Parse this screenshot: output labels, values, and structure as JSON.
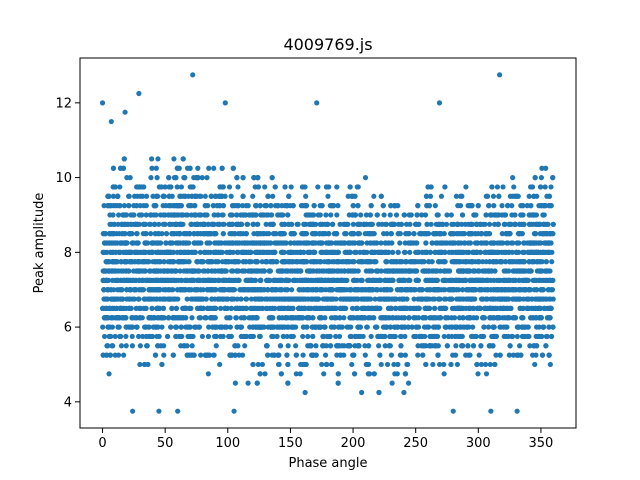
{
  "chart_data": {
    "type": "scatter",
    "title": "4009769.js",
    "xlabel": "Phase angle",
    "ylabel": "Peak amplitude",
    "xlim": [
      -18,
      378
    ],
    "ylim": [
      3.3,
      13.2
    ],
    "xticks": [
      0,
      50,
      100,
      150,
      200,
      250,
      300,
      350
    ],
    "yticks": [
      4,
      6,
      8,
      10,
      12
    ],
    "grid": false,
    "marker_color": "#1f77b4",
    "x_range": [
      0,
      360
    ],
    "y_step": 0.25,
    "approx_point_count": 6000,
    "density_note_free": true,
    "outliers": [
      {
        "x": 0,
        "y": 12.0
      },
      {
        "x": 7,
        "y": 11.5
      },
      {
        "x": 18,
        "y": 11.75
      },
      {
        "x": 29,
        "y": 12.25
      },
      {
        "x": 72,
        "y": 12.75
      },
      {
        "x": 98,
        "y": 12.0
      },
      {
        "x": 171,
        "y": 12.0
      },
      {
        "x": 269,
        "y": 12.0
      },
      {
        "x": 317,
        "y": 12.75
      },
      {
        "x": 24,
        "y": 3.75
      },
      {
        "x": 45,
        "y": 3.75
      },
      {
        "x": 60,
        "y": 3.75
      },
      {
        "x": 105,
        "y": 3.75
      },
      {
        "x": 280,
        "y": 3.75
      },
      {
        "x": 310,
        "y": 3.75
      },
      {
        "x": 331,
        "y": 3.75
      }
    ],
    "band_profile": [
      {
        "x": 0,
        "low": 4.25,
        "high": 10.25
      },
      {
        "x": 40,
        "low": 4.0,
        "high": 10.75
      },
      {
        "x": 80,
        "low": 4.25,
        "high": 10.5
      },
      {
        "x": 120,
        "low": 4.25,
        "high": 10.25
      },
      {
        "x": 160,
        "low": 4.0,
        "high": 10.0
      },
      {
        "x": 200,
        "low": 4.0,
        "high": 10.0
      },
      {
        "x": 240,
        "low": 4.0,
        "high": 9.75
      },
      {
        "x": 280,
        "low": 4.25,
        "high": 10.0
      },
      {
        "x": 320,
        "low": 4.25,
        "high": 10.0
      },
      {
        "x": 360,
        "low": 4.0,
        "high": 10.5
      }
    ]
  }
}
